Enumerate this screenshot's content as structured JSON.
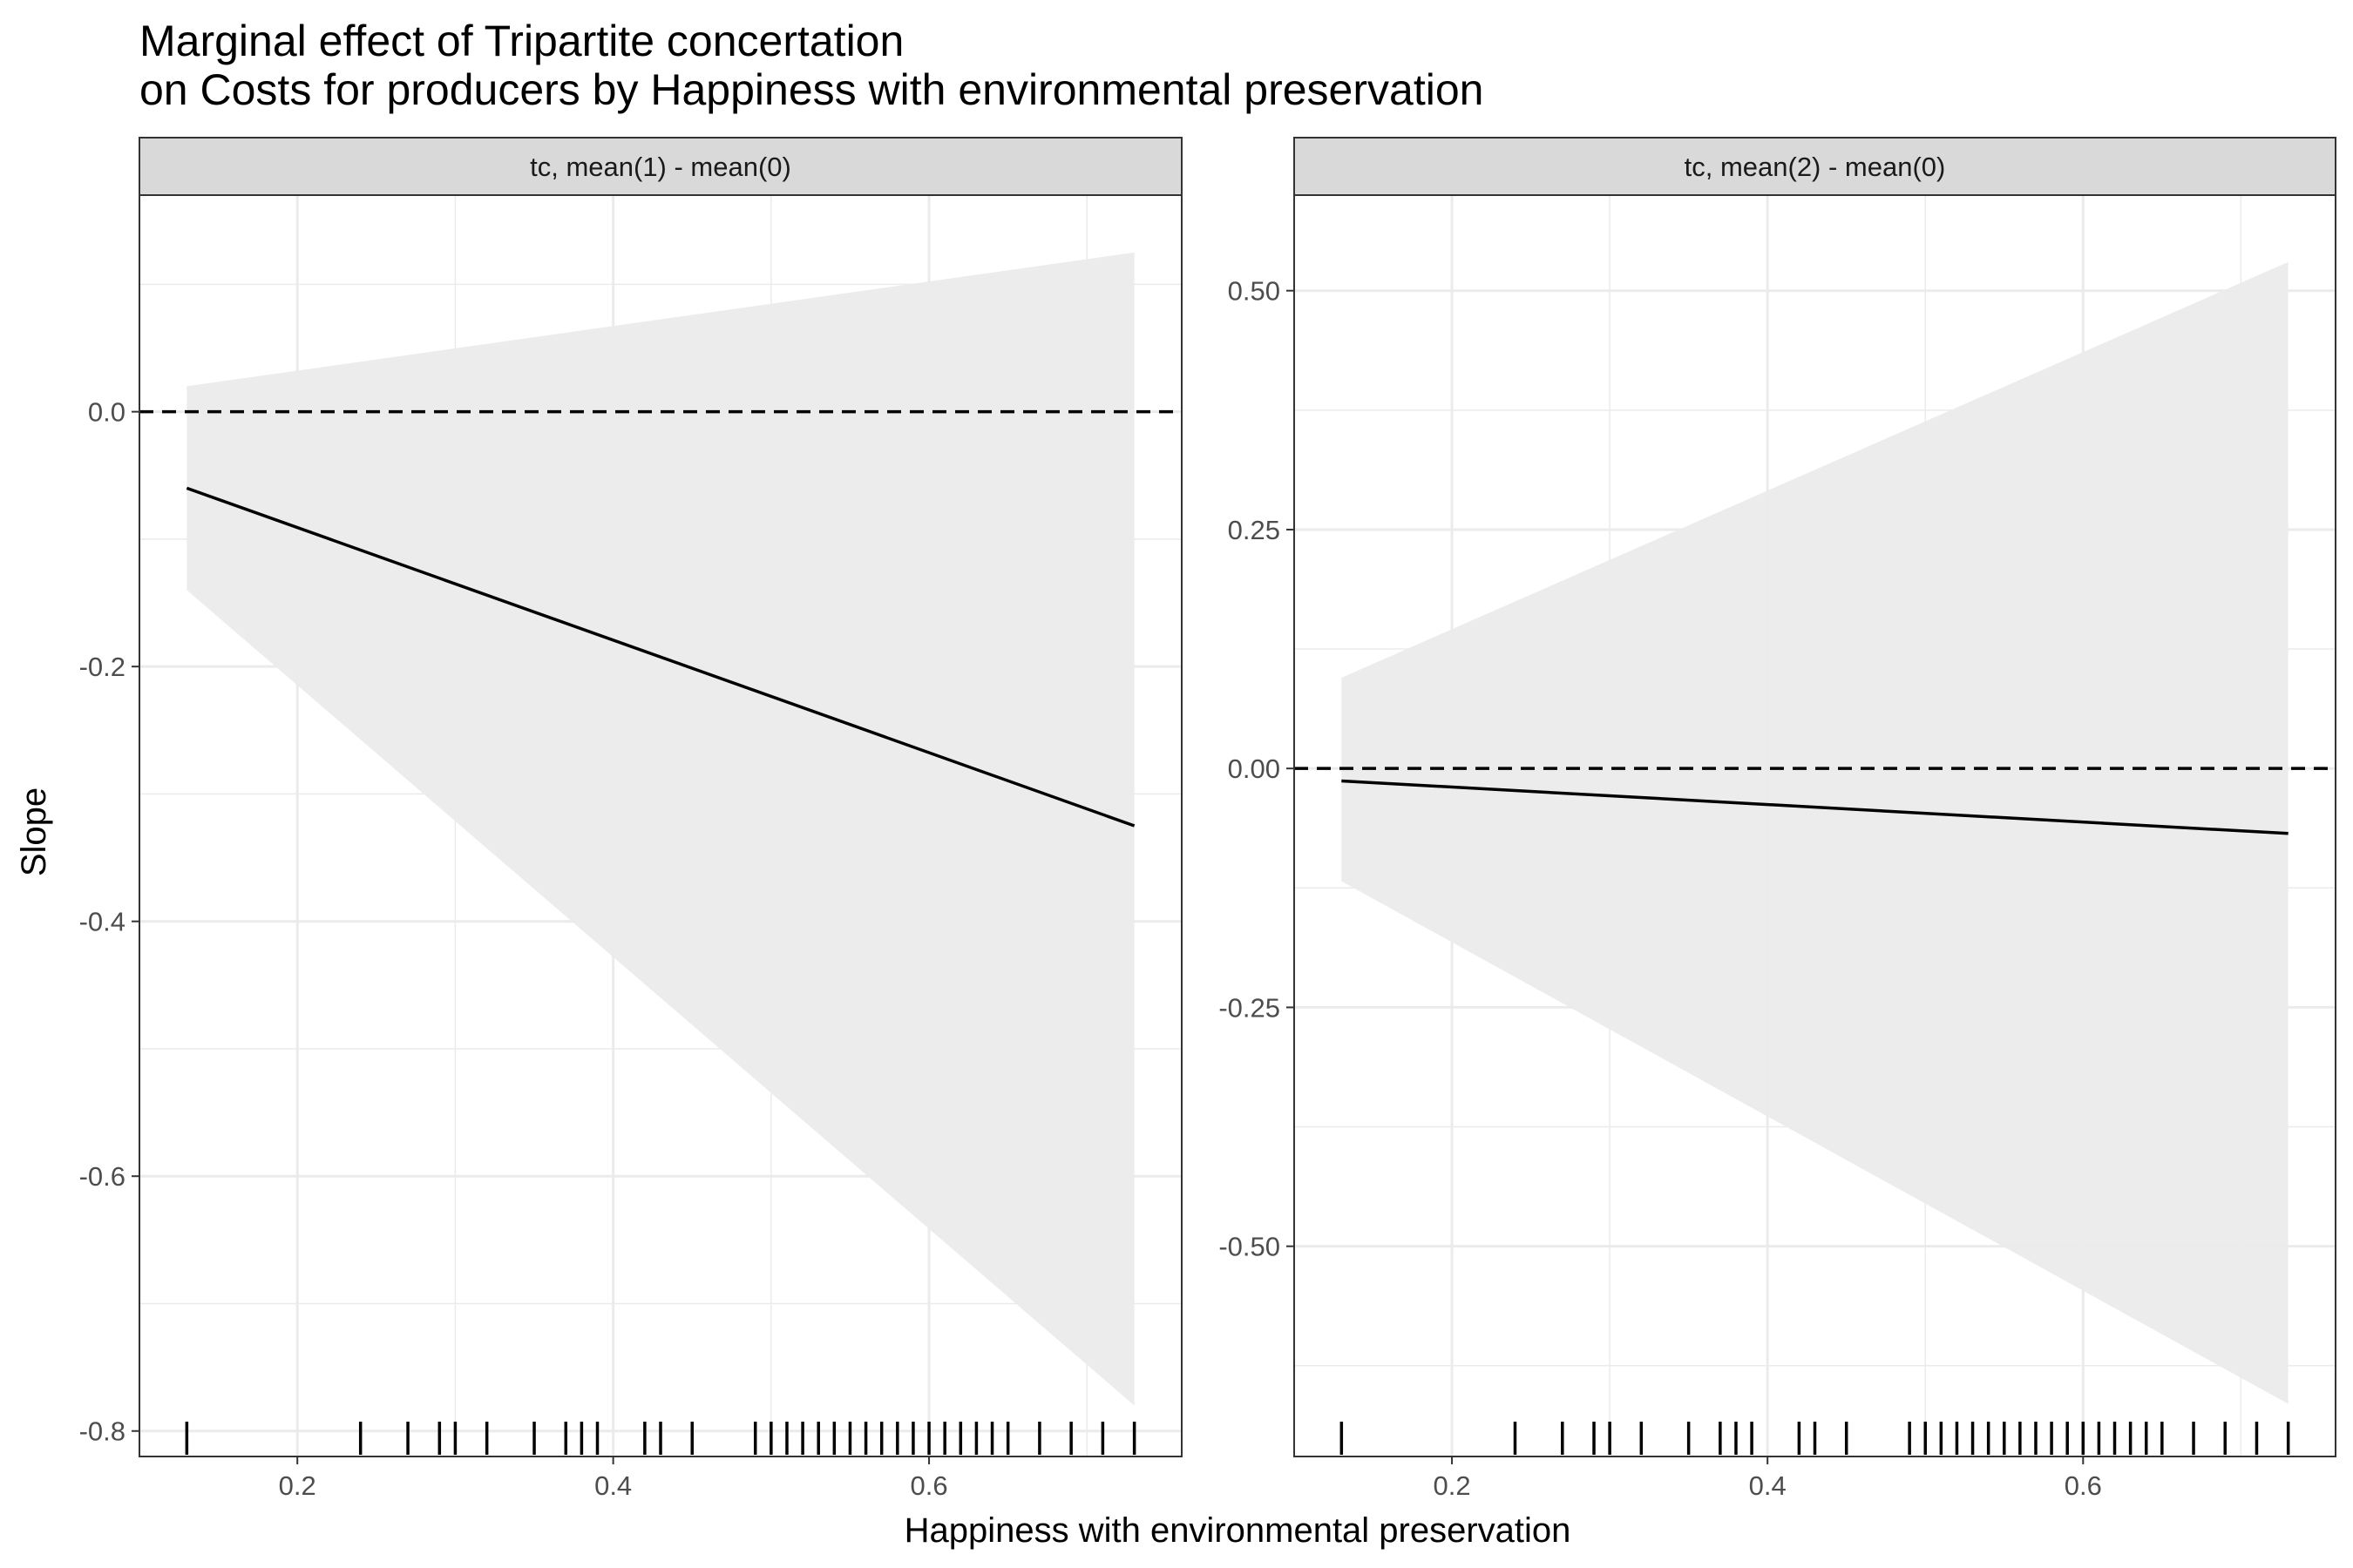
{
  "chart_data": {
    "type": "line",
    "title": "Marginal effect of Tripartite concertation",
    "subtitle": "on Costs for producers by Happiness with environmental preservation",
    "xlabel": "Happiness with environmental preservation",
    "ylabel": "Slope",
    "x_ticks": [
      "0.2",
      "0.4",
      "0.6"
    ],
    "rug_x": [
      0.13,
      0.24,
      0.27,
      0.29,
      0.3,
      0.32,
      0.35,
      0.37,
      0.38,
      0.39,
      0.42,
      0.43,
      0.45,
      0.49,
      0.5,
      0.51,
      0.52,
      0.53,
      0.54,
      0.55,
      0.56,
      0.57,
      0.58,
      0.59,
      0.6,
      0.61,
      0.62,
      0.63,
      0.64,
      0.65,
      0.67,
      0.69,
      0.71,
      0.73
    ],
    "panels": [
      {
        "strip_label": "tc, mean(1) - mean(0)",
        "xlim": [
          0.1,
          0.76
        ],
        "ylim": [
          -0.82,
          0.17
        ],
        "y_ticks": [
          "0.0",
          "-0.2",
          "-0.4",
          "-0.6",
          "-0.8"
        ],
        "reference_line": 0.0,
        "line": {
          "x": [
            0.13,
            0.73
          ],
          "y": [
            -0.06,
            -0.325
          ]
        },
        "ribbon": {
          "x": [
            0.13,
            0.73
          ],
          "lower": [
            -0.14,
            -0.78
          ],
          "upper": [
            0.02,
            0.125
          ]
        }
      },
      {
        "strip_label": "tc, mean(2) - mean(0)",
        "xlim": [
          0.1,
          0.76
        ],
        "ylim": [
          -0.72,
          0.6
        ],
        "y_ticks": [
          "0.50",
          "0.25",
          "0.00",
          "-0.25",
          "-0.50"
        ],
        "reference_line": 0.0,
        "line": {
          "x": [
            0.13,
            0.73
          ],
          "y": [
            -0.013,
            -0.068
          ]
        },
        "ribbon": {
          "x": [
            0.13,
            0.73
          ],
          "lower": [
            -0.118,
            -0.665
          ],
          "upper": [
            0.095,
            0.53
          ]
        }
      }
    ],
    "grid": true,
    "colors": {
      "ribbon": "#ebebeb",
      "line": "#000000",
      "strip": "#d9d9d9",
      "grid": "#ebebeb",
      "axis_text": "#4d4d4d"
    }
  }
}
